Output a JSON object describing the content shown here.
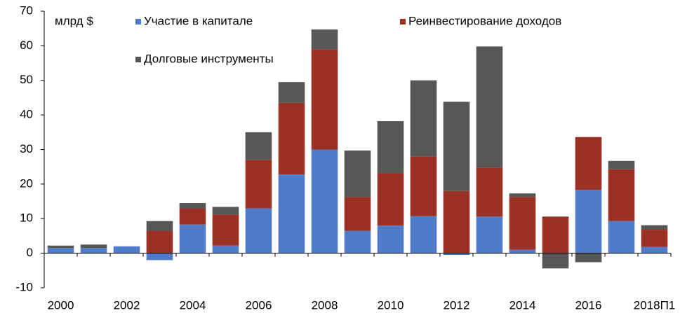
{
  "chart_data": {
    "type": "stacked_bar",
    "annotation": "млрд $",
    "categories": [
      "2000",
      null,
      "2002",
      null,
      "2004",
      null,
      "2006",
      null,
      "2008",
      null,
      "2010",
      null,
      "2012",
      null,
      "2014",
      null,
      "2016",
      null,
      "2018П1"
    ],
    "series": [
      {
        "name": "Участие в капитале",
        "color": "#4f7bc8",
        "values": [
          1.5,
          1.5,
          2,
          -2,
          8.3,
          2.2,
          13,
          22.8,
          30,
          6.5,
          8,
          10.7,
          -0.5,
          10.6,
          1,
          0,
          18.3,
          9.3,
          1.8
        ]
      },
      {
        "name": "Реинвестирование доходов",
        "color": "#9a3124",
        "values": [
          0,
          0,
          0,
          6.5,
          4.7,
          9,
          14,
          20.7,
          29,
          9.8,
          15.2,
          17.3,
          18,
          14.2,
          15.3,
          10.6,
          15.3,
          15,
          5
        ]
      },
      {
        "name": "Долговые инструменты",
        "color": "#575757",
        "values": [
          0.7,
          1,
          0,
          2.8,
          1.5,
          2.2,
          8,
          6,
          5.7,
          13.4,
          15,
          22,
          25.8,
          35,
          1,
          -4.4,
          -2.6,
          2.4,
          1.3
        ]
      }
    ],
    "ylim": [
      -10,
      70
    ],
    "yticks": [
      -10,
      0,
      10,
      20,
      30,
      40,
      50,
      60,
      70
    ],
    "grid": false
  }
}
